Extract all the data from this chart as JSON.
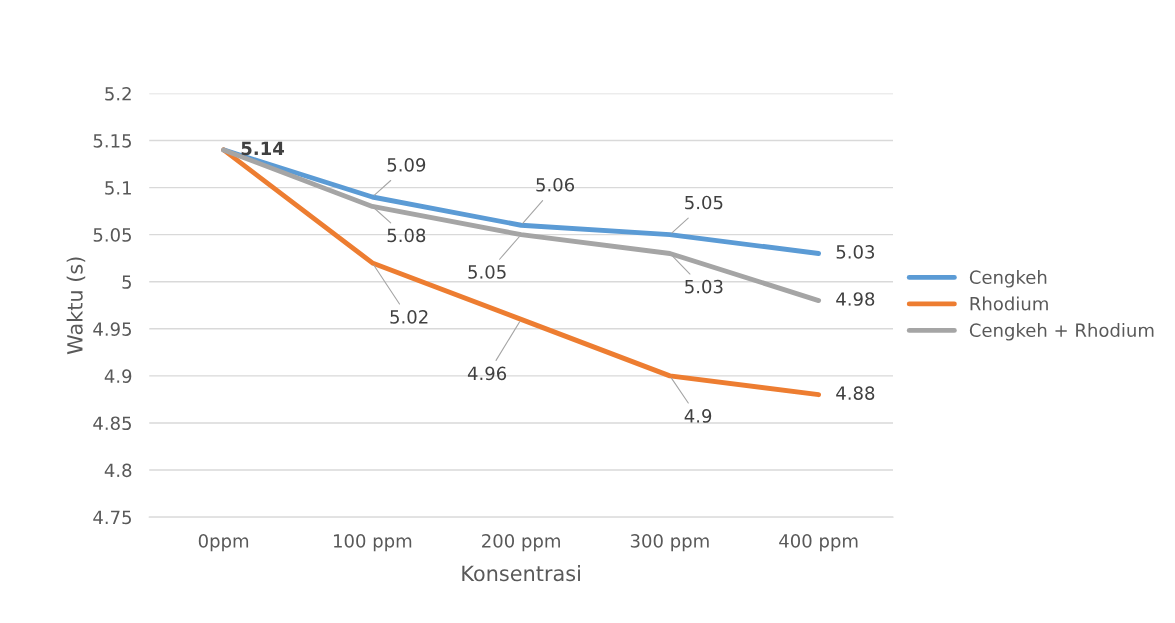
{
  "chart_data": {
    "type": "line",
    "xlabel": "Konsentrasi",
    "ylabel": "Waktu (s)",
    "categories": [
      "0ppm",
      "100 ppm",
      "200 ppm",
      "300 ppm",
      "400 ppm"
    ],
    "series": [
      {
        "name": "Cengkeh",
        "color": "#5b9bd5",
        "values": [
          5.14,
          5.09,
          5.06,
          5.05,
          5.03
        ],
        "value_labels": [
          "5.14",
          "5.09",
          "5.06",
          "5.05",
          "5.03"
        ]
      },
      {
        "name": "Rhodium",
        "color": "#ed7d31",
        "values": [
          5.14,
          5.02,
          4.96,
          4.9,
          4.88
        ],
        "value_labels": [
          null,
          "5.02",
          "4.96",
          "4.9",
          "4.88"
        ]
      },
      {
        "name": "Cengkeh + Rhodium",
        "color": "#a5a5a5",
        "values": [
          5.14,
          5.08,
          5.05,
          5.03,
          4.98
        ],
        "value_labels": [
          null,
          "5.08",
          "5.05",
          "5.03",
          "4.98"
        ]
      }
    ],
    "ylim": [
      4.75,
      5.2
    ],
    "yticks": [
      4.75,
      4.8,
      4.85,
      4.9,
      4.95,
      5,
      5.05,
      5.1,
      5.15,
      5.2
    ],
    "grid": "y",
    "legend": "right",
    "marker": "none",
    "line_style": "solid"
  }
}
